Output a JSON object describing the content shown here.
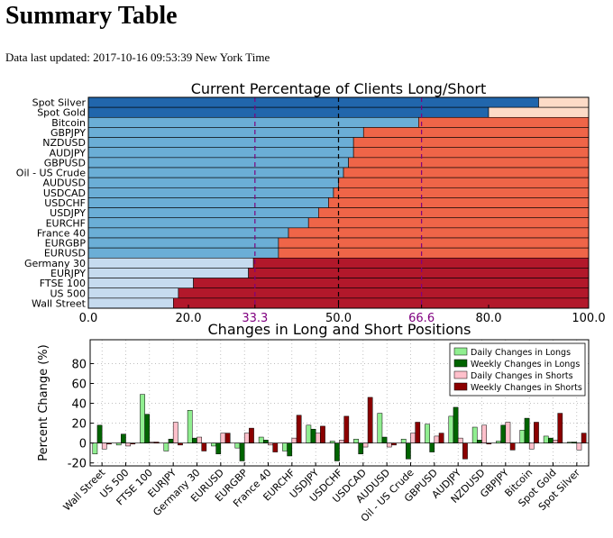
{
  "page": {
    "title": "Summary Table",
    "last_updated": "Data last updated: 2017-10-16 09:53:39 New York Time"
  },
  "colors": {
    "long_dark": "#2166ac",
    "long_mid": "#6baed6",
    "long_light": "#c6dbef",
    "short_dark": "#b2182b",
    "short_mid": "#ef6548",
    "short_light": "#fddbc7",
    "daily_longs": "#90ee90",
    "weekly_longs": "#006400",
    "daily_shorts": "#ffc0cb",
    "weekly_shorts": "#8b0000",
    "marker": "#800080"
  },
  "chart_data": [
    {
      "type": "bar",
      "orientation": "horizontal",
      "title": "Current Percentage of Clients Long/Short",
      "categories": [
        "Spot Silver",
        "Spot Gold",
        "Bitcoin",
        "GBPJPY",
        "NZDUSD",
        "AUDJPY",
        "GBPUSD",
        "Oil - US Crude",
        "AUDUSD",
        "USDCAD",
        "USDCHF",
        "USDJPY",
        "EURCHF",
        "France 40",
        "EURGBP",
        "EURUSD",
        "Germany 30",
        "EURJPY",
        "FTSE 100",
        "US 500",
        "Wall Street"
      ],
      "series": [
        {
          "name": "Long",
          "values": [
            90,
            80,
            66,
            55,
            53,
            53,
            52,
            51,
            50,
            49,
            48,
            46,
            44,
            40,
            38,
            38,
            33,
            32,
            21,
            18,
            17
          ]
        },
        {
          "name": "Short",
          "values": [
            10,
            20,
            34,
            45,
            47,
            47,
            48,
            49,
            50,
            51,
            52,
            54,
            56,
            60,
            62,
            62,
            67,
            68,
            79,
            82,
            83
          ]
        }
      ],
      "xlim": [
        0,
        100
      ],
      "xticks": [
        "0.0",
        "20.0",
        "33.3",
        "50.0",
        "66.6",
        "80.0",
        "100.0"
      ],
      "xtick_values": [
        0,
        20,
        33.3,
        50,
        66.6,
        80,
        100
      ],
      "highlight_ticks": [
        "33.3",
        "66.6"
      ],
      "reference_lines": [
        33.3,
        50,
        66.6
      ]
    },
    {
      "type": "bar",
      "title": "Changes in Long and Short Positions",
      "ylabel": "Percent Change (%)",
      "categories": [
        "Wall Street",
        "US 500",
        "FTSE 100",
        "EURJPY",
        "Germany 30",
        "EURUSD",
        "EURGBP",
        "France 40",
        "EURCHF",
        "USDJPY",
        "USDCHF",
        "USDCAD",
        "AUDUSD",
        "Oil - US Crude",
        "GBPUSD",
        "AUDJPY",
        "NZDUSD",
        "GBPJPY",
        "Bitcoin",
        "Spot Gold",
        "Spot Silver"
      ],
      "ylim": [
        -23,
        104
      ],
      "yticks": [
        -20,
        0,
        20,
        40,
        60,
        80
      ],
      "grid": true,
      "legend_position": "top-right",
      "series": [
        {
          "name": "Daily Changes in Longs",
          "values": [
            -11,
            -2,
            49,
            -8,
            33,
            -3,
            -5,
            6,
            -8,
            18,
            2,
            4,
            30,
            4,
            19,
            27,
            16,
            2,
            13,
            7,
            1
          ]
        },
        {
          "name": "Weekly Changes in Longs",
          "values": [
            18,
            9,
            29,
            4,
            5,
            -11,
            -18,
            3,
            -13,
            14,
            -18,
            -11,
            6,
            -16,
            -9,
            36,
            3,
            18,
            25,
            5,
            1
          ]
        },
        {
          "name": "Daily Changes in Shorts",
          "values": [
            -6,
            -3,
            1,
            21,
            6,
            10,
            10,
            -2,
            5,
            10,
            3,
            -4,
            -4,
            10,
            7,
            5,
            18,
            21,
            -6,
            3,
            -7
          ]
        },
        {
          "name": "Weekly Changes in Shorts",
          "values": [
            -1,
            -1,
            1,
            -2,
            -8,
            10,
            15,
            -9,
            28,
            17,
            27,
            46,
            -2,
            21,
            10,
            -16,
            -1,
            -7,
            21,
            30,
            10
          ]
        }
      ]
    }
  ]
}
